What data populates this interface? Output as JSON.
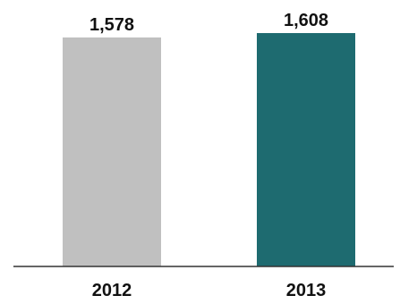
{
  "chart_data": {
    "type": "bar",
    "categories": [
      "2012",
      "2013"
    ],
    "values": [
      1578,
      1608
    ],
    "value_labels": [
      "1,578",
      "1,608"
    ],
    "bar_colors": [
      "#c0c0c0",
      "#1e6b70"
    ],
    "axis_color": "#333333",
    "title": "",
    "xlabel": "",
    "ylabel": "",
    "grid": false
  }
}
